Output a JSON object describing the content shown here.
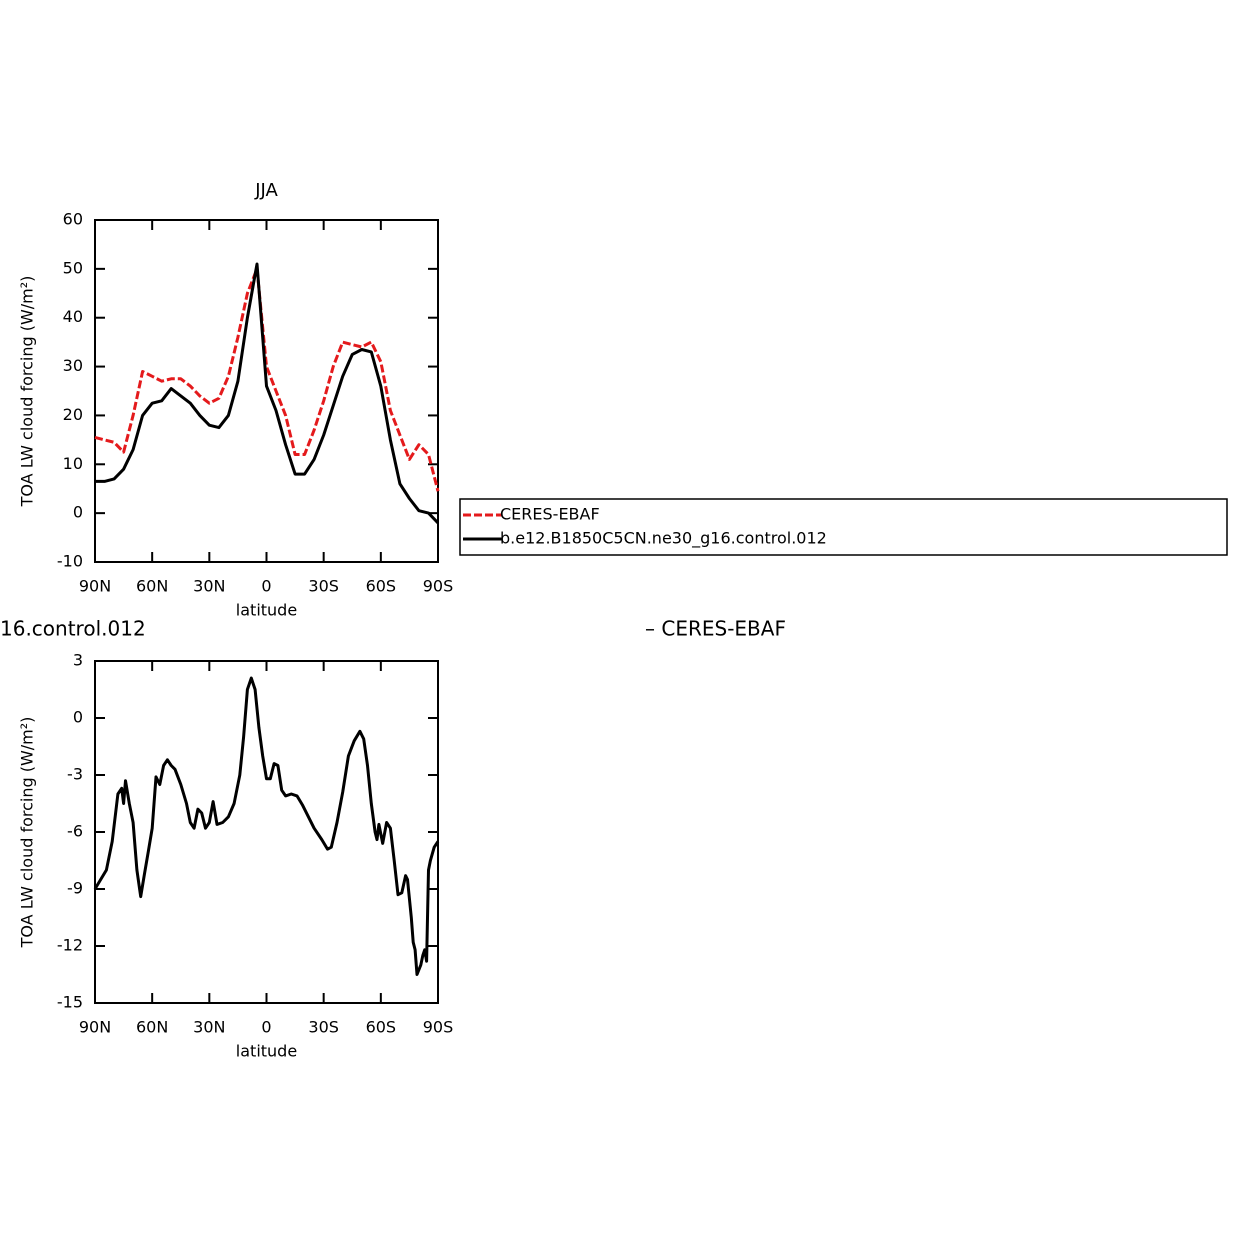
{
  "chart_data": [
    {
      "type": "line",
      "title": "JJA",
      "x_label": "latitude",
      "y_label": "TOA LW cloud forcing (W/m²)",
      "x": [
        90,
        85,
        80,
        75,
        70,
        65,
        60,
        55,
        50,
        45,
        40,
        35,
        30,
        25,
        20,
        15,
        10,
        5,
        0,
        -5,
        -10,
        -15,
        -20,
        -25,
        -30,
        -35,
        -40,
        -45,
        -50,
        -55,
        -60,
        -65,
        -70,
        -75,
        -80,
        -85,
        -90
      ],
      "series": [
        {
          "name": "CERES-EBAF",
          "color": "#e41a1c",
          "line_style": "dashed",
          "values": [
            15.5,
            15,
            14.5,
            12.5,
            20,
            29,
            28,
            27,
            27.5,
            27.5,
            26,
            24,
            22.5,
            23.5,
            28,
            36,
            45,
            50,
            30,
            25,
            20,
            12,
            12,
            17,
            23,
            30,
            35,
            34.5,
            34,
            35,
            31,
            21,
            16,
            11,
            14,
            12,
            4.5
          ]
        },
        {
          "name": "b.e12.B1850C5CN.ne30_g16.control.012",
          "color": "#000000",
          "line_style": "solid",
          "values": [
            6.5,
            6.5,
            7,
            9,
            13,
            20,
            22.5,
            23,
            25.5,
            24,
            22.5,
            20,
            18,
            17.5,
            20,
            27,
            40,
            51,
            26,
            21,
            14,
            8,
            8,
            11,
            16,
            22,
            28,
            32.5,
            33.5,
            33,
            26,
            15,
            6,
            3,
            0.5,
            0,
            -2
          ]
        }
      ],
      "xlim": [
        90,
        -90
      ],
      "xticks": [
        {
          "value": 90,
          "label": "90N"
        },
        {
          "value": 60,
          "label": "60N"
        },
        {
          "value": 30,
          "label": "30N"
        },
        0,
        {
          "value": -30,
          "label": "30S"
        },
        {
          "value": -60,
          "label": "60S"
        },
        {
          "value": -90,
          "label": "90S"
        }
      ],
      "ylim": [
        -10,
        60
      ],
      "yticks": [
        -10,
        0,
        10,
        20,
        30,
        40,
        50,
        60
      ],
      "legend": "right"
    },
    {
      "type": "line",
      "title_parts": [
        "16.control.012",
        "– CERES-EBAF"
      ],
      "x_label": "latitude",
      "y_label": "TOA LW cloud forcing (W/m²)",
      "x": [
        90,
        87,
        84,
        81,
        78,
        76,
        75,
        74,
        72,
        70,
        68,
        66,
        64,
        62,
        60,
        58,
        56,
        54,
        52,
        50,
        48,
        45,
        42,
        40,
        38,
        36,
        34,
        32,
        30,
        28,
        26,
        23,
        20,
        17,
        14,
        12,
        10,
        8,
        6,
        4,
        2,
        0,
        -2,
        -4,
        -6,
        -8,
        -10,
        -13,
        -16,
        -19,
        -22,
        -25,
        -29,
        -32,
        -34,
        -37,
        -40,
        -43,
        -46,
        -49,
        -51,
        -53,
        -55,
        -57,
        -58,
        -59,
        -61,
        -63,
        -65,
        -67,
        -69,
        -71,
        -73,
        -74,
        -76,
        -77,
        -78,
        -79,
        -81,
        -82,
        -83,
        -84,
        -85,
        -86,
        -88,
        -90
      ],
      "color": "#000000",
      "values": [
        -9,
        -8.5,
        -8,
        -6.5,
        -4,
        -3.7,
        -4.5,
        -3.3,
        -4.5,
        -5.5,
        -8,
        -9.4,
        -8.2,
        -7,
        -5.8,
        -3.1,
        -3.5,
        -2.5,
        -2.2,
        -2.5,
        -2.7,
        -3.5,
        -4.5,
        -5.5,
        -5.8,
        -4.8,
        -5,
        -5.8,
        -5.5,
        -4.4,
        -5.6,
        -5.5,
        -5.2,
        -4.5,
        -3,
        -1,
        1.5,
        2.1,
        1.5,
        -0.5,
        -2,
        -3.2,
        -3.2,
        -2.4,
        -2.5,
        -3.8,
        -4.1,
        -4,
        -4.1,
        -4.6,
        -5.2,
        -5.8,
        -6.4,
        -6.9,
        -6.8,
        -5.5,
        -3.9,
        -2,
        -1.2,
        -0.7,
        -1.1,
        -2.5,
        -4.5,
        -6,
        -6.4,
        -5.6,
        -6.6,
        -5.5,
        -5.8,
        -7.5,
        -9.3,
        -9.2,
        -8.3,
        -8.5,
        -10.5,
        -11.8,
        -12.2,
        -13.5,
        -13,
        -12.5,
        -12.2,
        -12.8,
        -8,
        -7.5,
        -6.8,
        -6.5
      ],
      "xlim": [
        90,
        -90
      ],
      "xticks": [
        {
          "value": 90,
          "label": "90N"
        },
        {
          "value": 60,
          "label": "60N"
        },
        {
          "value": 30,
          "label": "30N"
        },
        0,
        {
          "value": -30,
          "label": "30S"
        },
        {
          "value": -60,
          "label": "60S"
        },
        {
          "value": -90,
          "label": "90S"
        }
      ],
      "ylim": [
        -15,
        3
      ],
      "yticks": [
        -15,
        -12,
        -9,
        -6,
        -3,
        0,
        3
      ]
    }
  ]
}
